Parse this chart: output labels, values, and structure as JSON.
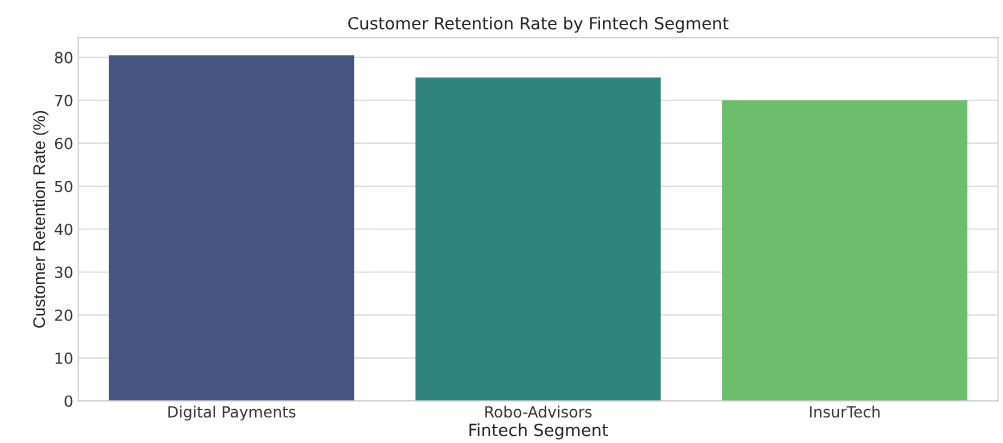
{
  "chart_data": {
    "type": "bar",
    "title": "Customer Retention Rate by Fintech Segment",
    "xlabel": "Fintech Segment",
    "ylabel": "Customer Retention Rate (%)",
    "categories": [
      "Digital Payments",
      "Robo-Advisors",
      "InsurTech"
    ],
    "values": [
      80.5,
      75.3,
      70.0
    ],
    "colors": [
      "#46557f",
      "#2e837c",
      "#6cbd6c"
    ],
    "ylim": [
      0,
      84.6
    ],
    "yticks": [
      0,
      10,
      20,
      30,
      40,
      50,
      60,
      70,
      80
    ],
    "grid": "y"
  }
}
